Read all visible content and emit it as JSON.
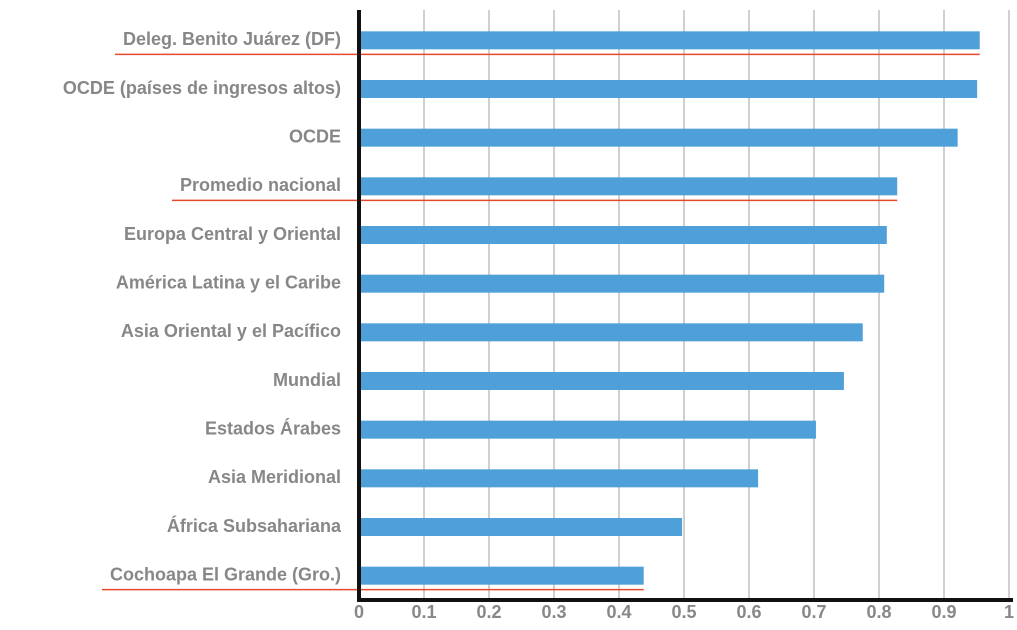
{
  "chart_data": {
    "type": "bar",
    "orientation": "horizontal",
    "categories": [
      "Deleg. Benito Juárez (DF)",
      "OCDE (países de ingresos altos)",
      "OCDE",
      "Promedio nacional",
      "Europa Central y Oriental",
      "América Latina y el Caribe",
      "Asia Oriental y el Pacífico",
      "Mundial",
      "Estados Árabes",
      "Asia Meridional",
      "África Subsahariana",
      "Cochoapa El Grande (Gro.)"
    ],
    "values": [
      0.955,
      0.951,
      0.921,
      0.828,
      0.812,
      0.808,
      0.775,
      0.746,
      0.703,
      0.614,
      0.497,
      0.438
    ],
    "color": "#4f9fd8",
    "highlight": [
      true,
      false,
      false,
      true,
      false,
      false,
      false,
      false,
      false,
      false,
      false,
      true
    ],
    "highlight_color": "#e8492a",
    "xlim": [
      0,
      1
    ],
    "xticks": [
      0,
      0.1,
      0.2,
      0.3,
      0.4,
      0.5,
      0.6,
      0.7,
      0.8,
      0.9,
      1
    ],
    "grid": true
  }
}
